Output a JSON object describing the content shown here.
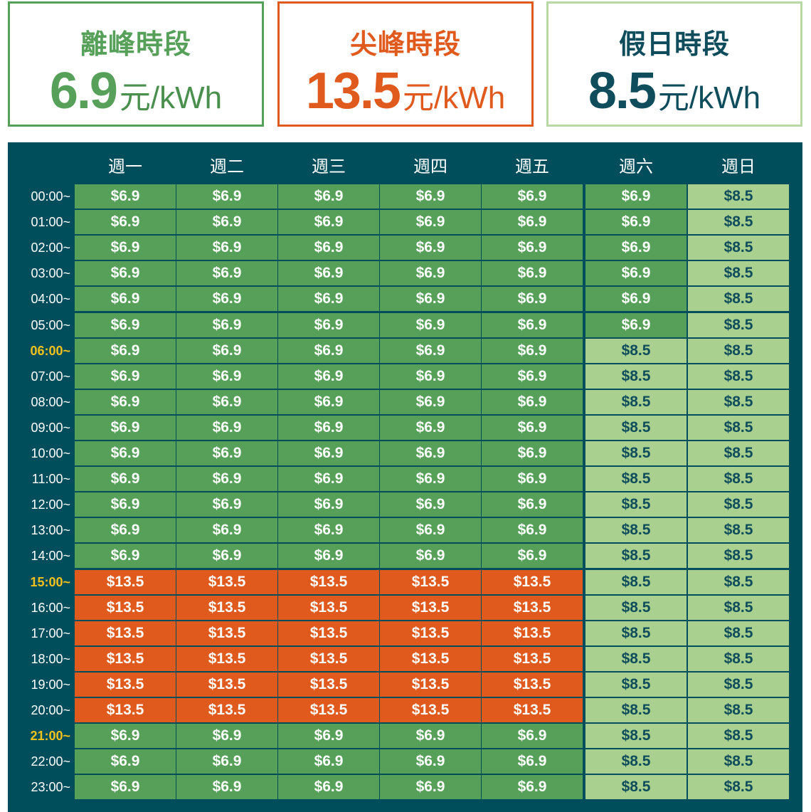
{
  "cards": [
    {
      "id": "offpeak",
      "title": "離峰時段",
      "price": "6.9",
      "unit": "元/kWh"
    },
    {
      "id": "peak",
      "title": "尖峰時段",
      "price": "13.5",
      "unit": "元/kWh"
    },
    {
      "id": "holiday",
      "title": "假日時段",
      "price": "8.5",
      "unit": "元/kWh"
    }
  ],
  "days": [
    "週一",
    "週二",
    "週三",
    "週四",
    "週五",
    "週六",
    "週日"
  ],
  "times": [
    "00:00~",
    "01:00~",
    "02:00~",
    "03:00~",
    "04:00~",
    "05:00~",
    "06:00~",
    "07:00~",
    "08:00~",
    "09:00~",
    "10:00~",
    "11:00~",
    "12:00~",
    "13:00~",
    "14:00~",
    "15:00~",
    "16:00~",
    "17:00~",
    "18:00~",
    "19:00~",
    "20:00~",
    "21:00~",
    "22:00~",
    "23:00~"
  ],
  "highlighted_times": [
    "06:00~",
    "15:00~",
    "21:00~"
  ],
  "rate_labels": {
    "off": "$6.9",
    "peak": "$13.5",
    "hol": "$8.5"
  },
  "colors": {
    "offpeak": "#57a05a",
    "peak": "#e05a1e",
    "holiday": "#a9d08f",
    "panel": "#004e5c",
    "highlight": "#f2c11b"
  },
  "grid": [
    [
      "off",
      "off",
      "off",
      "off",
      "off",
      "off",
      "hol"
    ],
    [
      "off",
      "off",
      "off",
      "off",
      "off",
      "off",
      "hol"
    ],
    [
      "off",
      "off",
      "off",
      "off",
      "off",
      "off",
      "hol"
    ],
    [
      "off",
      "off",
      "off",
      "off",
      "off",
      "off",
      "hol"
    ],
    [
      "off",
      "off",
      "off",
      "off",
      "off",
      "off",
      "hol"
    ],
    [
      "off",
      "off",
      "off",
      "off",
      "off",
      "off",
      "hol"
    ],
    [
      "off",
      "off",
      "off",
      "off",
      "off",
      "hol",
      "hol"
    ],
    [
      "off",
      "off",
      "off",
      "off",
      "off",
      "hol",
      "hol"
    ],
    [
      "off",
      "off",
      "off",
      "off",
      "off",
      "hol",
      "hol"
    ],
    [
      "off",
      "off",
      "off",
      "off",
      "off",
      "hol",
      "hol"
    ],
    [
      "off",
      "off",
      "off",
      "off",
      "off",
      "hol",
      "hol"
    ],
    [
      "off",
      "off",
      "off",
      "off",
      "off",
      "hol",
      "hol"
    ],
    [
      "off",
      "off",
      "off",
      "off",
      "off",
      "hol",
      "hol"
    ],
    [
      "off",
      "off",
      "off",
      "off",
      "off",
      "hol",
      "hol"
    ],
    [
      "off",
      "off",
      "off",
      "off",
      "off",
      "hol",
      "hol"
    ],
    [
      "peak",
      "peak",
      "peak",
      "peak",
      "peak",
      "hol",
      "hol"
    ],
    [
      "peak",
      "peak",
      "peak",
      "peak",
      "peak",
      "hol",
      "hol"
    ],
    [
      "peak",
      "peak",
      "peak",
      "peak",
      "peak",
      "hol",
      "hol"
    ],
    [
      "peak",
      "peak",
      "peak",
      "peak",
      "peak",
      "hol",
      "hol"
    ],
    [
      "peak",
      "peak",
      "peak",
      "peak",
      "peak",
      "hol",
      "hol"
    ],
    [
      "peak",
      "peak",
      "peak",
      "peak",
      "peak",
      "hol",
      "hol"
    ],
    [
      "off",
      "off",
      "off",
      "off",
      "off",
      "hol",
      "hol"
    ],
    [
      "off",
      "off",
      "off",
      "off",
      "off",
      "hol",
      "hol"
    ],
    [
      "off",
      "off",
      "off",
      "off",
      "off",
      "hol",
      "hol"
    ]
  ]
}
